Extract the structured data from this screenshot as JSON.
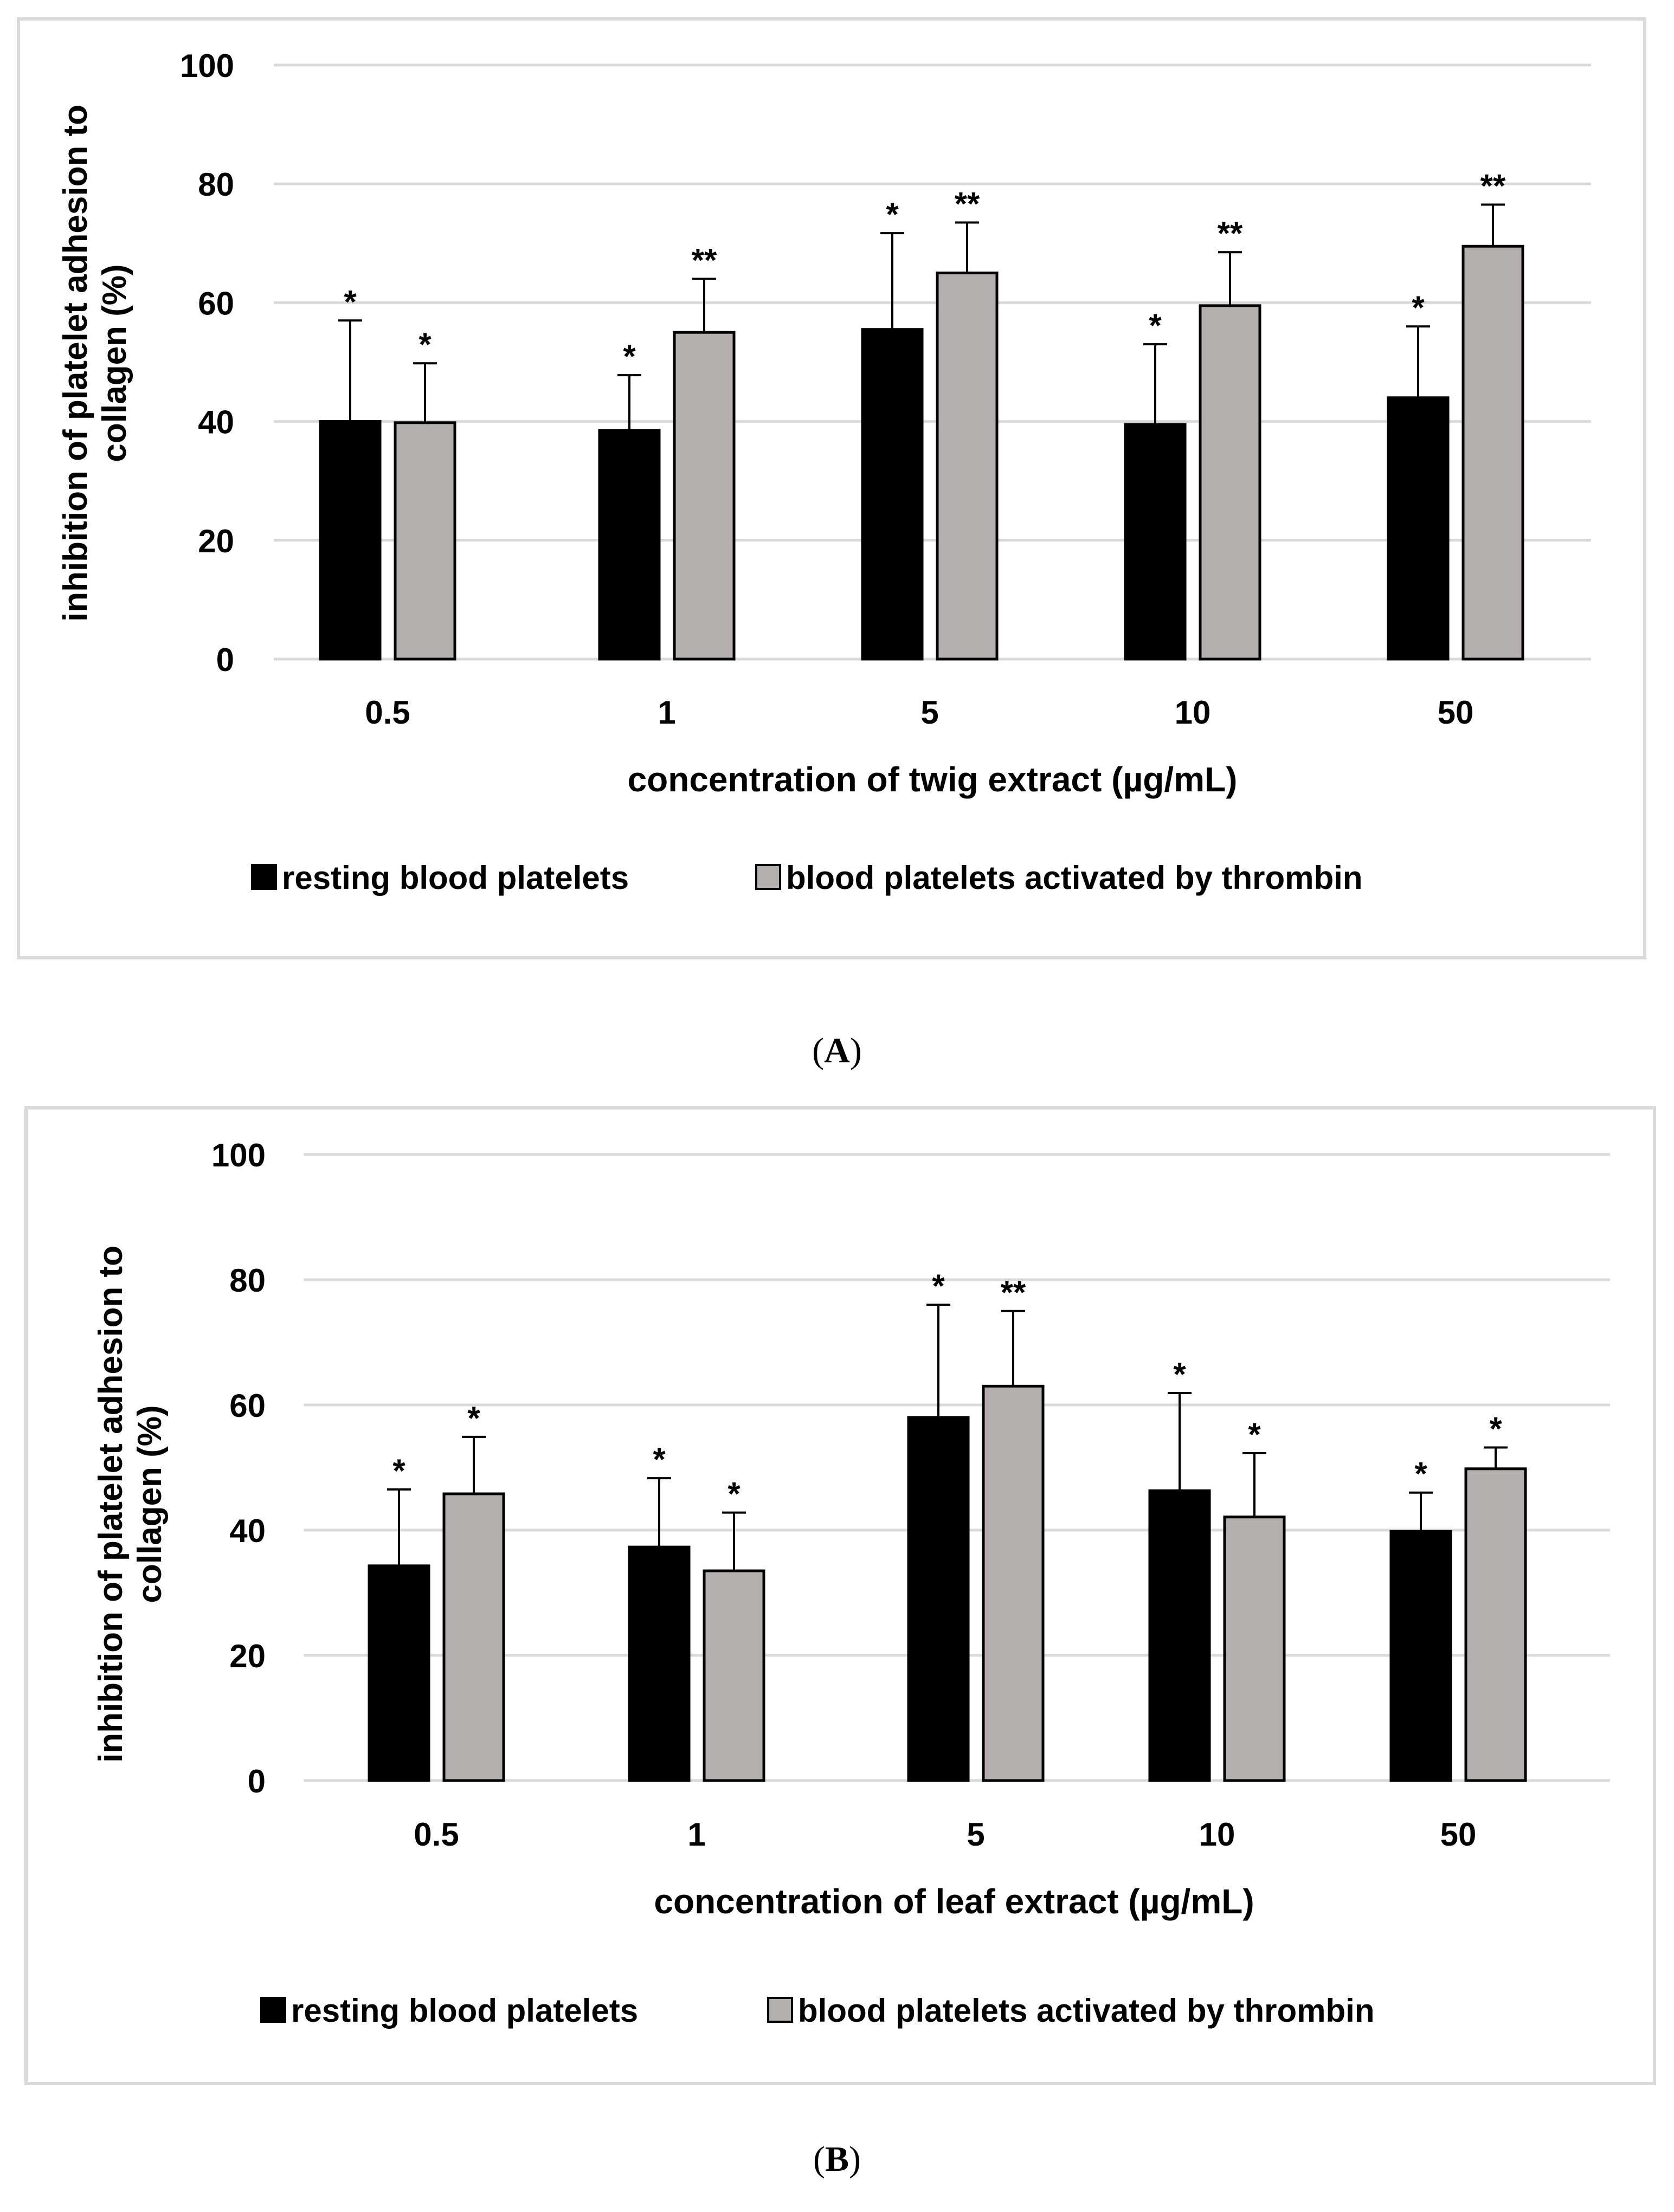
{
  "colors": {
    "resting": "#000000",
    "activated": "#b3afaf",
    "grid": "#d9d9d9",
    "panel_border": "#d9d9d9",
    "text": "#000000"
  },
  "captions": {
    "a_open": "(",
    "a_letter": "A",
    "a_close": ")",
    "b_open": "(",
    "b_letter": "B",
    "b_close": ")"
  },
  "chart_data": [
    {
      "id": "A",
      "type": "bar",
      "ylabel_line1": "inhibition of platelet adhesion to",
      "ylabel_line2": "collagen (%)",
      "xlabel": "concentration of twig extract (µg/mL)",
      "ylim": [
        0,
        100
      ],
      "yticks": [
        0,
        20,
        40,
        60,
        80,
        100
      ],
      "grid": true,
      "legend_position": "bottom",
      "categories": [
        "0.5",
        "1",
        "5",
        "10",
        "50"
      ],
      "series": [
        {
          "key": "resting",
          "name": "resting blood platelets",
          "values": [
            40,
            38.5,
            55.5,
            39.5,
            44
          ],
          "errors": [
            17,
            9.3,
            16.2,
            13.5,
            12
          ],
          "significance": [
            "*",
            "*",
            "*",
            "*",
            "*"
          ]
        },
        {
          "key": "activated",
          "name": "blood platelets activated by thrombin",
          "values": [
            39.8,
            55,
            65,
            59.5,
            69.5
          ],
          "errors": [
            10,
            9,
            8.5,
            9,
            7
          ],
          "significance": [
            "*",
            "**",
            "**",
            "**",
            "**"
          ]
        }
      ]
    },
    {
      "id": "B",
      "type": "bar",
      "ylabel_line1": "inhibition of platelet adhesion to",
      "ylabel_line2": "collagen (%)",
      "xlabel": "concentration of leaf extract (µg/mL)",
      "ylim": [
        0,
        100
      ],
      "yticks": [
        0,
        20,
        40,
        60,
        80,
        100
      ],
      "grid": true,
      "legend_position": "bottom",
      "categories": [
        "0.5",
        "1",
        "5",
        "10",
        "50"
      ],
      "series": [
        {
          "key": "resting",
          "name": "resting blood platelets",
          "values": [
            34.3,
            37.3,
            58,
            46.3,
            39.8
          ],
          "errors": [
            12.2,
            11,
            18,
            15.6,
            6.2
          ],
          "significance": [
            "*",
            "*",
            "*",
            "*",
            "*"
          ]
        },
        {
          "key": "activated",
          "name": "blood platelets activated by thrombin",
          "values": [
            45.8,
            33.5,
            63,
            42.1,
            49.8
          ],
          "errors": [
            9.1,
            9.3,
            12,
            10.2,
            3.4
          ],
          "significance": [
            "*",
            "*",
            "**",
            "*",
            "*"
          ]
        }
      ]
    }
  ]
}
